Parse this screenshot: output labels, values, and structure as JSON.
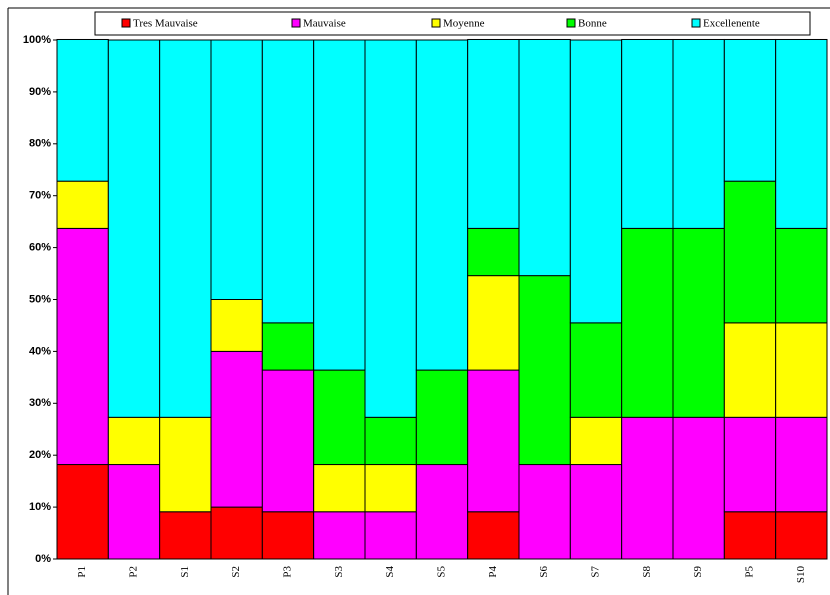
{
  "chart_data": {
    "type": "stacked-bar",
    "categories": [
      "P1",
      "P2",
      "S1",
      "S2",
      "P3",
      "S3",
      "S4",
      "S5",
      "P4",
      "S6",
      "S7",
      "S8",
      "S9",
      "P5",
      "S10"
    ],
    "series": [
      {
        "name": "Tres Mauvaise",
        "color": "#ff0000",
        "values": [
          18.2,
          0,
          9.1,
          10,
          9.1,
          0,
          0,
          0,
          9.1,
          0,
          0,
          0,
          0,
          9.1,
          9.1
        ]
      },
      {
        "name": "Mauvaise",
        "color": "#ff00ff",
        "values": [
          45.5,
          18.2,
          0,
          30,
          27.3,
          9.1,
          9.1,
          18.2,
          27.3,
          18.2,
          18.2,
          27.3,
          27.3,
          18.2,
          18.2
        ]
      },
      {
        "name": "Moyenne",
        "color": "#ffff00",
        "values": [
          9.1,
          9.1,
          18.2,
          10,
          0,
          9.1,
          9.1,
          0,
          18.2,
          0,
          9.1,
          0,
          0,
          18.2,
          18.2
        ]
      },
      {
        "name": "Bonne",
        "color": "#00ff00",
        "values": [
          0,
          0,
          0,
          0,
          9.1,
          18.2,
          9.1,
          18.2,
          9.1,
          36.4,
          18.2,
          36.4,
          36.4,
          27.3,
          18.2
        ]
      },
      {
        "name": "Excellenente",
        "color": "#00ffff",
        "values": [
          27.3,
          72.7,
          72.7,
          50,
          54.5,
          63.6,
          72.7,
          63.6,
          36.4,
          45.5,
          54.5,
          36.4,
          36.4,
          27.3,
          36.4
        ]
      }
    ],
    "ylim": [
      0,
      100
    ],
    "yticks": [
      {
        "value": 0,
        "label": "0%"
      },
      {
        "value": 10,
        "label": "10%"
      },
      {
        "value": 20,
        "label": "20%"
      },
      {
        "value": 30,
        "label": "30%"
      },
      {
        "value": 40,
        "label": "40%"
      },
      {
        "value": 50,
        "label": "50%"
      },
      {
        "value": 60,
        "label": "60%"
      },
      {
        "value": 70,
        "label": "70%"
      },
      {
        "value": 80,
        "label": "80%"
      },
      {
        "value": 90,
        "label": "90%"
      },
      {
        "value": 100,
        "label": "100%"
      }
    ],
    "legend": "top",
    "grid": false
  }
}
